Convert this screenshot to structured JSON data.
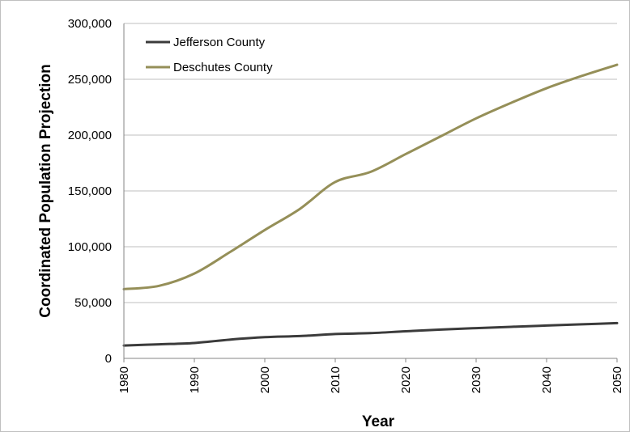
{
  "chart_data": {
    "type": "line",
    "title": "",
    "xlabel": "Year",
    "ylabel": "Coordinated Population Projection",
    "xlim": [
      1980,
      2050
    ],
    "ylim": [
      0,
      300000
    ],
    "x_ticks": [
      "1980",
      "1990",
      "2000",
      "2010",
      "2020",
      "2030",
      "2040",
      "2050"
    ],
    "y_ticks": [
      "0",
      "50,000",
      "100,000",
      "150,000",
      "200,000",
      "250,000",
      "300,000"
    ],
    "grid": true,
    "legend_position": "top-left",
    "series": [
      {
        "name": "Jefferson County",
        "color": "#3b3b3b",
        "x": [
          1980,
          1985,
          1990,
          1995,
          2000,
          2005,
          2010,
          2015,
          2020,
          2025,
          2030,
          2035,
          2040,
          2045,
          2050
        ],
        "values": [
          11500,
          12600,
          13800,
          16800,
          19000,
          20000,
          21800,
          22600,
          24300,
          25800,
          27100,
          28300,
          29400,
          30500,
          31600
        ]
      },
      {
        "name": "Deschutes County",
        "color": "#958f58",
        "x": [
          1980,
          1985,
          1990,
          1995,
          2000,
          2005,
          2010,
          2015,
          2020,
          2025,
          2030,
          2035,
          2040,
          2045,
          2050
        ],
        "values": [
          62000,
          65000,
          76000,
          95000,
          115000,
          134000,
          158000,
          167000,
          183000,
          199000,
          215000,
          229000,
          242000,
          253000,
          263000
        ]
      }
    ]
  }
}
